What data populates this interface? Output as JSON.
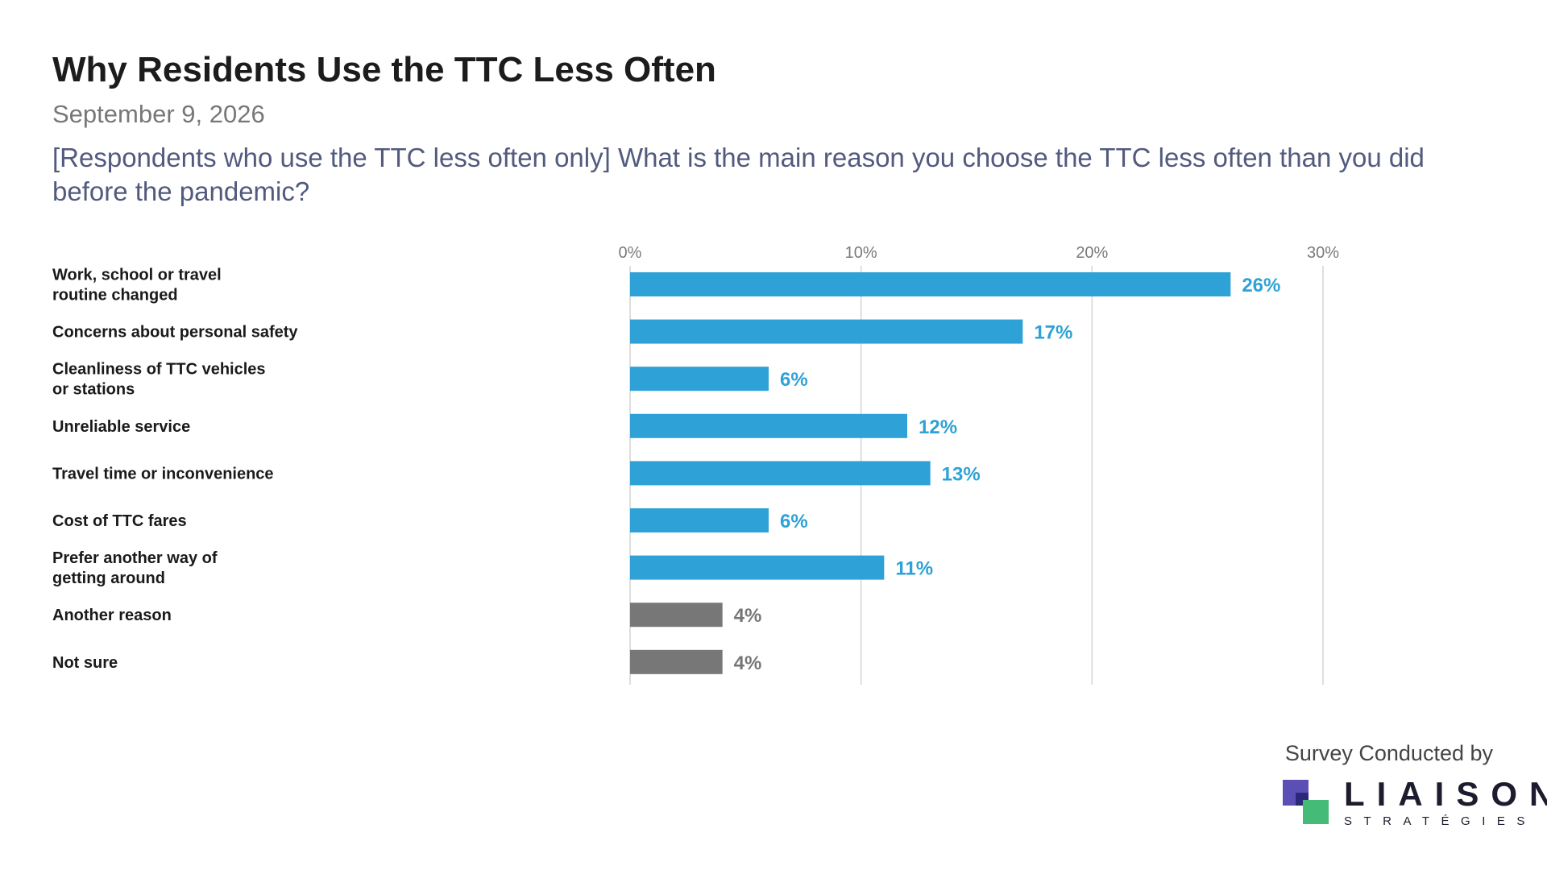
{
  "header": {
    "title": "Why Residents Use the TTC Less Often",
    "date": "September 9, 2026",
    "question": "[Respondents who use the TTC less often only] What is the main reason you choose the TTC less often than you did before the pandemic?"
  },
  "footer": {
    "conducted_by": "Survey Conducted by",
    "logo_word": "LIAISON",
    "logo_sub": "STRATÉGIES",
    "logo_colors": {
      "purple": "#5b4fb5",
      "dark_blue": "#2b2a7a",
      "green": "#44bb77"
    }
  },
  "chart_data": {
    "type": "bar",
    "orientation": "horizontal",
    "categories": [
      [
        "Work, school or travel",
        "routine changed"
      ],
      [
        "Concerns about personal safety"
      ],
      [
        "Cleanliness of TTC vehicles",
        "or stations"
      ],
      [
        "Unreliable service"
      ],
      [
        "Travel time or inconvenience"
      ],
      [
        "Cost of TTC fares"
      ],
      [
        "Prefer another way of",
        "getting around"
      ],
      [
        "Another reason"
      ],
      [
        "Not sure"
      ]
    ],
    "values": [
      26,
      17,
      6,
      12,
      13,
      6,
      11,
      4,
      4
    ],
    "value_labels": [
      "26%",
      "17%",
      "6%",
      "12%",
      "13%",
      "6%",
      "11%",
      "4%",
      "4%"
    ],
    "bar_colors": [
      "#2ea2d6",
      "#2ea2d6",
      "#2ea2d6",
      "#2ea2d6",
      "#2ea2d6",
      "#2ea2d6",
      "#2ea2d6",
      "#777777",
      "#777777"
    ],
    "label_colors": [
      "#2ea2d6",
      "#2ea2d6",
      "#2ea2d6",
      "#2ea2d6",
      "#2ea2d6",
      "#2ea2d6",
      "#2ea2d6",
      "#777777",
      "#777777"
    ],
    "xticks": [
      0,
      10,
      20,
      30
    ],
    "xtick_labels": [
      "0%",
      "10%",
      "20%",
      "30%"
    ],
    "xlim": [
      0,
      30
    ],
    "grid": true,
    "axis_position": "top"
  }
}
